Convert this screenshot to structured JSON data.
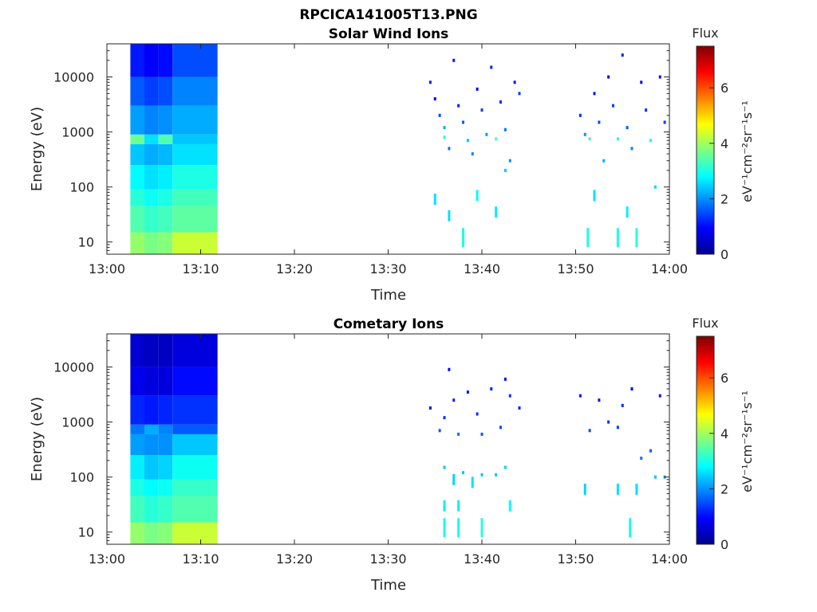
{
  "figure": {
    "filename": "RPCICA141005T13.PNG"
  },
  "colorbar": {
    "title": "Flux",
    "label": "eV⁻¹cm⁻²sr⁻¹s⁻¹",
    "range": [
      0,
      7.5
    ],
    "ticks": [
      "0",
      "2",
      "4",
      "6"
    ],
    "colormap": "jet"
  },
  "chart_data": [
    {
      "type": "heatmap",
      "title": "Solar Wind Ions",
      "xlabel": "Time",
      "ylabel": "Energy (eV)",
      "xlim": [
        "13:00",
        "14:00"
      ],
      "ylim": [
        6,
        40000
      ],
      "yscale": "log",
      "xticks": [
        "13:00",
        "13:10",
        "13:20",
        "13:30",
        "13:40",
        "13:50",
        "14:00"
      ],
      "yticks": [
        "10",
        "100",
        "1000",
        "10000"
      ],
      "flux_units": "eV-1 cm-2 sr-1 s-1",
      "segments": [
        {
          "time": [
            "13:02.5",
            "13:04"
          ],
          "bands": [
            [
              6,
              15,
              3.9
            ],
            [
              15,
              45,
              3.4
            ],
            [
              45,
              90,
              3.1
            ],
            [
              90,
              250,
              2.8
            ],
            [
              250,
              600,
              2.4
            ],
            [
              600,
              900,
              3.6
            ],
            [
              900,
              3000,
              2.1
            ],
            [
              3000,
              10000,
              1.6
            ],
            [
              10000,
              40000,
              1.1
            ]
          ]
        },
        {
          "time": [
            "13:04",
            "13:05.5"
          ],
          "bands": [
            [
              6,
              15,
              3.7
            ],
            [
              15,
              45,
              3.2
            ],
            [
              45,
              90,
              2.9
            ],
            [
              90,
              250,
              2.6
            ],
            [
              250,
              600,
              2.2
            ],
            [
              600,
              900,
              2.6
            ],
            [
              900,
              3000,
              1.9
            ],
            [
              3000,
              10000,
              1.4
            ],
            [
              10000,
              40000,
              0.9
            ]
          ]
        },
        {
          "time": [
            "13:05.5",
            "13:07"
          ],
          "bands": [
            [
              6,
              15,
              3.8
            ],
            [
              15,
              45,
              3.3
            ],
            [
              45,
              90,
              3.0
            ],
            [
              90,
              250,
              2.7
            ],
            [
              250,
              600,
              2.3
            ],
            [
              600,
              900,
              3.4
            ],
            [
              900,
              3000,
              2.0
            ],
            [
              3000,
              10000,
              1.5
            ],
            [
              10000,
              40000,
              1.0
            ]
          ]
        },
        {
          "time": [
            "13:07",
            "13:11.8"
          ],
          "bands": [
            [
              6,
              15,
              4.3
            ],
            [
              15,
              45,
              3.5
            ],
            [
              45,
              90,
              3.3
            ],
            [
              90,
              250,
              3.0
            ],
            [
              250,
              600,
              2.6
            ],
            [
              600,
              900,
              2.4
            ],
            [
              900,
              3000,
              2.2
            ],
            [
              3000,
              10000,
              1.9
            ],
            [
              10000,
              40000,
              1.5
            ]
          ]
        }
      ],
      "sparse": [
        [
          "13:34.5",
          8000,
          1.2
        ],
        [
          "13:35",
          4000,
          1.0
        ],
        [
          "13:35.5",
          2000,
          1.5
        ],
        [
          "13:36",
          800,
          3.0
        ],
        [
          "13:36",
          1200,
          2.2
        ],
        [
          "13:36.5",
          500,
          1.8
        ],
        [
          "13:37",
          20000,
          1.1
        ],
        [
          "13:37.5",
          3000,
          1.2
        ],
        [
          "13:38",
          1500,
          1.6
        ],
        [
          "13:38.5",
          700,
          2.4
        ],
        [
          "13:39",
          400,
          1.9
        ],
        [
          "13:39.5",
          6000,
          1.0
        ],
        [
          "13:40",
          2500,
          1.4
        ],
        [
          "13:40.5",
          900,
          2.1
        ],
        [
          "13:41",
          15000,
          1.2
        ],
        [
          "13:41.5",
          750,
          3.4
        ],
        [
          "13:42",
          3500,
          1.3
        ],
        [
          "13:42.5",
          1100,
          1.8
        ],
        [
          "13:43",
          300,
          2.0
        ],
        [
          "13:43.5",
          8000,
          1.1
        ],
        [
          "13:44",
          5000,
          1.4
        ],
        [
          "13:35",
          60,
          2.6
        ],
        [
          "13:36.5",
          30,
          2.6
        ],
        [
          "13:38",
          12,
          3.0
        ],
        [
          "13:39.5",
          70,
          2.8
        ],
        [
          "13:41.5",
          35,
          2.7
        ],
        [
          "13:42.5",
          200,
          2.4
        ],
        [
          "13:50.5",
          2000,
          1.3
        ],
        [
          "13:51",
          900,
          2.0
        ],
        [
          "13:51.5",
          750,
          3.2
        ],
        [
          "13:52",
          5000,
          1.1
        ],
        [
          "13:52.5",
          1500,
          1.5
        ],
        [
          "13:53",
          300,
          2.2
        ],
        [
          "13:53.5",
          10000,
          1.0
        ],
        [
          "13:54",
          3000,
          1.4
        ],
        [
          "13:54.5",
          750,
          3.1
        ],
        [
          "13:55",
          25000,
          1.2
        ],
        [
          "13:55.5",
          1200,
          1.6
        ],
        [
          "13:56",
          500,
          1.9
        ],
        [
          "13:57",
          8000,
          1.0
        ],
        [
          "13:57.5",
          2500,
          1.3
        ],
        [
          "13:58",
          700,
          2.8
        ],
        [
          "13:59",
          10000,
          1.1
        ],
        [
          "13:59.5",
          1500,
          1.4
        ],
        [
          "13:52",
          70,
          2.6
        ],
        [
          "13:55.5",
          35,
          2.7
        ],
        [
          "13:51.3",
          12,
          3.0
        ],
        [
          "13:54.5",
          12,
          3.0
        ],
        [
          "13:56.5",
          12,
          3.1
        ],
        [
          "13:58.5",
          100,
          2.5
        ]
      ]
    },
    {
      "type": "heatmap",
      "title": "Cometary Ions",
      "xlabel": "Time",
      "ylabel": "Energy (eV)",
      "xlim": [
        "13:00",
        "14:00"
      ],
      "ylim": [
        6,
        40000
      ],
      "yscale": "log",
      "xticks": [
        "13:00",
        "13:10",
        "13:20",
        "13:30",
        "13:40",
        "13:50",
        "14:00"
      ],
      "yticks": [
        "10",
        "100",
        "1000",
        "10000"
      ],
      "flux_units": "eV-1 cm-2 sr-1 s-1",
      "segments": [
        {
          "time": [
            "13:02.5",
            "13:04"
          ],
          "bands": [
            [
              6,
              15,
              3.9
            ],
            [
              15,
              45,
              3.3
            ],
            [
              45,
              90,
              3.0
            ],
            [
              90,
              250,
              2.7
            ],
            [
              250,
              600,
              2.1
            ],
            [
              600,
              900,
              1.8
            ],
            [
              900,
              3000,
              1.2
            ],
            [
              3000,
              10000,
              0.8
            ],
            [
              10000,
              40000,
              0.6
            ]
          ]
        },
        {
          "time": [
            "13:04",
            "13:05.5"
          ],
          "bands": [
            [
              6,
              15,
              3.7
            ],
            [
              15,
              45,
              3.1
            ],
            [
              45,
              90,
              2.8
            ],
            [
              90,
              250,
              2.4
            ],
            [
              250,
              600,
              2.0
            ],
            [
              600,
              900,
              2.2
            ],
            [
              900,
              3000,
              1.1
            ],
            [
              3000,
              10000,
              0.7
            ],
            [
              10000,
              40000,
              0.5
            ]
          ]
        },
        {
          "time": [
            "13:05.5",
            "13:07"
          ],
          "bands": [
            [
              6,
              15,
              3.8
            ],
            [
              15,
              45,
              3.2
            ],
            [
              45,
              90,
              2.9
            ],
            [
              90,
              250,
              2.5
            ],
            [
              250,
              600,
              2.0
            ],
            [
              600,
              900,
              1.9
            ],
            [
              900,
              3000,
              1.2
            ],
            [
              3000,
              10000,
              0.7
            ],
            [
              10000,
              40000,
              0.5
            ]
          ]
        },
        {
          "time": [
            "13:07",
            "13:11.8"
          ],
          "bands": [
            [
              6,
              15,
              4.3
            ],
            [
              15,
              45,
              3.4
            ],
            [
              45,
              90,
              3.2
            ],
            [
              90,
              250,
              2.9
            ],
            [
              250,
              600,
              2.4
            ],
            [
              600,
              900,
              1.6
            ],
            [
              900,
              3000,
              1.3
            ],
            [
              3000,
              10000,
              1.0
            ],
            [
              10000,
              40000,
              0.7
            ]
          ]
        }
      ],
      "sparse": [
        [
          "13:34.5",
          1800,
          1.1
        ],
        [
          "13:35.5",
          700,
          1.6
        ],
        [
          "13:36",
          1200,
          1.3
        ],
        [
          "13:36.5",
          9000,
          1.0
        ],
        [
          "13:37",
          2500,
          1.2
        ],
        [
          "13:37.5",
          600,
          1.8
        ],
        [
          "13:38.5",
          3500,
          1.1
        ],
        [
          "13:39.5",
          1400,
          1.3
        ],
        [
          "13:40",
          600,
          1.6
        ],
        [
          "13:41",
          4000,
          1.2
        ],
        [
          "13:42",
          800,
          1.5
        ],
        [
          "13:42.5",
          6000,
          1.0
        ],
        [
          "13:43",
          3000,
          1.3
        ],
        [
          "13:44",
          1800,
          1.2
        ],
        [
          "13:36",
          150,
          2.4
        ],
        [
          "13:37",
          90,
          2.5
        ],
        [
          "13:38",
          120,
          2.4
        ],
        [
          "13:40",
          110,
          2.4
        ],
        [
          "13:41.5",
          110,
          2.4
        ],
        [
          "13:42.5",
          150,
          2.5
        ],
        [
          "13:36",
          30,
          2.7
        ],
        [
          "13:37.5",
          30,
          2.7
        ],
        [
          "13:39",
          80,
          2.6
        ],
        [
          "13:43",
          30,
          2.8
        ],
        [
          "13:36",
          12,
          3.0
        ],
        [
          "13:37.5",
          12,
          3.0
        ],
        [
          "13:40",
          12,
          3.1
        ],
        [
          "13:50.5",
          3000,
          1.1
        ],
        [
          "13:51.5",
          700,
          1.5
        ],
        [
          "13:52.5",
          2500,
          1.1
        ],
        [
          "13:53.5",
          1000,
          1.3
        ],
        [
          "13:54.5",
          800,
          1.4
        ],
        [
          "13:55",
          2000,
          1.2
        ],
        [
          "13:56",
          4000,
          1.0
        ],
        [
          "13:57",
          220,
          1.8
        ],
        [
          "13:58",
          300,
          1.7
        ],
        [
          "13:59",
          3000,
          1.1
        ],
        [
          "13:59.5",
          100,
          2.2
        ],
        [
          "13:51",
          60,
          2.5
        ],
        [
          "13:54.5",
          60,
          2.6
        ],
        [
          "13:56.5",
          60,
          2.6
        ],
        [
          "13:58.5",
          100,
          2.4
        ],
        [
          "13:55.8",
          12,
          3.0
        ]
      ]
    }
  ]
}
